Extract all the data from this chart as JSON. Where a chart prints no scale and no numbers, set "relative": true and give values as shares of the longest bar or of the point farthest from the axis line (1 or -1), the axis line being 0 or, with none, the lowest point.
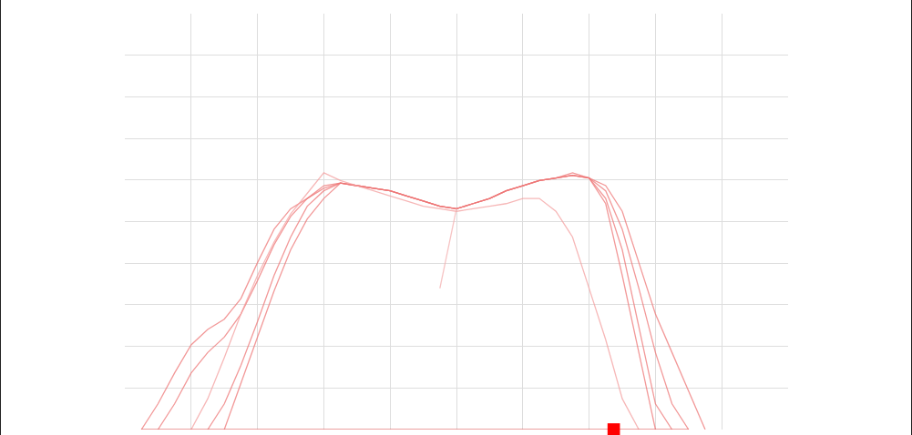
{
  "chart_data": {
    "type": "line",
    "relative": true,
    "grid": true,
    "legend": false,
    "marker": "none",
    "line_style": "solid",
    "categories": [
      null,
      null,
      null,
      null,
      null,
      null,
      null,
      null,
      null,
      null,
      null,
      null,
      null,
      null,
      null,
      null,
      null,
      null,
      null,
      null,
      null,
      null,
      null,
      null,
      null,
      null,
      null,
      null,
      null,
      null,
      null,
      null,
      null,
      null,
      null,
      null,
      null,
      null,
      null,
      null,
      null
    ],
    "series": [
      {
        "color": "#ee7777",
        "values": [
          null,
          0,
          0.1,
          0.22,
          0.33,
          0.39,
          0.43,
          0.51,
          0.65,
          0.78,
          0.86,
          0.9,
          0.95,
          0.96,
          0.95,
          0.94,
          0.93,
          0.91,
          0.89,
          0.87,
          0.86,
          0.88,
          0.9,
          0.93,
          0.95,
          0.97,
          0.98,
          1.0,
          0.98,
          0.9,
          0.7,
          0.4,
          0.1,
          0,
          null,
          null,
          null,
          null,
          null,
          null,
          null
        ]
      },
      {
        "color": "#ee7777",
        "values": [
          null,
          null,
          0,
          0.1,
          0.22,
          0.3,
          0.36,
          0.45,
          0.58,
          0.72,
          0.83,
          0.9,
          0.94,
          0.96,
          0.95,
          0.94,
          0.93,
          0.91,
          0.89,
          0.87,
          0.86,
          0.88,
          0.9,
          0.93,
          0.95,
          0.97,
          0.98,
          0.99,
          0.98,
          0.93,
          0.78,
          0.55,
          0.3,
          0.1,
          0,
          null,
          null,
          null,
          null,
          null,
          null
        ]
      },
      {
        "color": "#ee7777",
        "values": [
          null,
          null,
          null,
          null,
          null,
          0,
          0.1,
          0.25,
          0.42,
          0.6,
          0.75,
          0.87,
          0.93,
          0.96,
          0.95,
          0.94,
          0.93,
          0.91,
          0.89,
          0.87,
          0.86,
          0.88,
          0.9,
          0.93,
          0.95,
          0.97,
          0.98,
          0.99,
          0.98,
          0.88,
          0.6,
          0.3,
          0,
          null,
          null,
          null,
          null,
          null,
          null,
          null,
          null
        ]
      },
      {
        "color": "#ee7777",
        "values": [
          null,
          null,
          null,
          null,
          null,
          null,
          0,
          0.18,
          0.36,
          0.54,
          0.7,
          0.82,
          0.9,
          0.96,
          0.95,
          0.94,
          0.93,
          0.91,
          0.89,
          0.87,
          0.86,
          0.88,
          0.9,
          0.93,
          0.95,
          0.97,
          0.98,
          0.99,
          0.98,
          0.95,
          0.85,
          0.65,
          0.45,
          0.3,
          0.15,
          0,
          null,
          null,
          null,
          null,
          null
        ]
      },
      {
        "color": "#f4a0a0",
        "values": [
          null,
          null,
          null,
          null,
          0,
          0.12,
          0.28,
          0.45,
          0.6,
          0.73,
          0.84,
          0.92,
          1.0,
          0.97,
          0.95,
          0.93,
          0.91,
          0.89,
          0.87,
          0.86,
          0.85,
          0.86,
          0.87,
          0.88,
          0.9,
          0.9,
          0.85,
          0.75,
          0.55,
          0.35,
          0.12,
          0,
          null,
          null,
          null,
          null,
          null,
          null,
          null,
          null,
          null
        ]
      },
      {
        "color": "#f4b0b0",
        "values": [
          null,
          null,
          null,
          null,
          null,
          null,
          null,
          null,
          null,
          null,
          null,
          null,
          null,
          null,
          null,
          null,
          null,
          null,
          null,
          0.55,
          0.86,
          null,
          null,
          null,
          null,
          null,
          null,
          null,
          null,
          null,
          null,
          null,
          null,
          null,
          null,
          null,
          null,
          null,
          null,
          null,
          null
        ]
      },
      {
        "color": "#dd5555",
        "values": [
          null,
          0,
          0,
          0,
          0,
          0,
          0,
          0,
          0,
          0,
          0,
          0,
          0,
          0,
          0,
          0,
          0,
          0,
          0,
          0,
          0,
          0,
          0,
          0,
          0,
          0,
          0,
          0,
          0,
          0,
          0,
          0,
          0,
          0,
          0,
          null,
          null,
          null,
          null,
          null,
          null
        ]
      }
    ]
  }
}
